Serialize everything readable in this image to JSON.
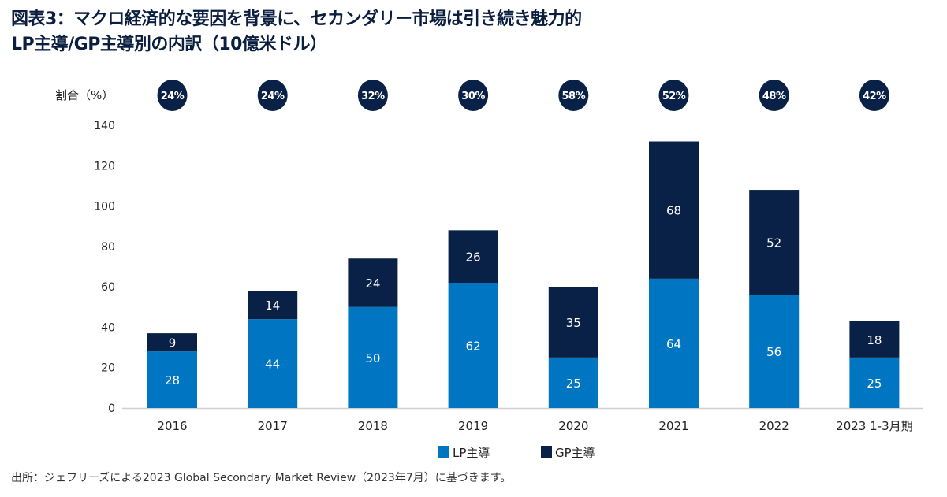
{
  "title_line1": "図表3：マクロ経済的な要因を背景に、セカンダリー市場は引き続き魅力的",
  "title_line2": "LP主導/GP主導別の内訳（10億米ドル）",
  "source": "出所：ジェフリーズによる2023 Global Secondary Market Review（2023年7月）に基づきます。",
  "colors": {
    "lp": "#0075C1",
    "gp": "#0A2147",
    "badge": "#0A2147",
    "axis": "#d0d0d0"
  },
  "chart_data": {
    "type": "bar",
    "stacked": true,
    "title": "LP主導/GP主導別の内訳（10億米ドル）",
    "xlabel": "",
    "ylabel": "",
    "categories": [
      "2016",
      "2017",
      "2018",
      "2019",
      "2020",
      "2021",
      "2022",
      "2023 1-3月期"
    ],
    "series": [
      {
        "name": "LP主導",
        "values": [
          28,
          44,
          50,
          62,
          25,
          64,
          56,
          25
        ]
      },
      {
        "name": "GP主導",
        "values": [
          9,
          14,
          24,
          26,
          35,
          68,
          52,
          18
        ]
      }
    ],
    "share_label": "割合（%）",
    "share_values": [
      "24%",
      "24%",
      "32%",
      "30%",
      "58%",
      "52%",
      "48%",
      "42%"
    ],
    "ylim": [
      0,
      140
    ],
    "yticks": [
      0,
      20,
      40,
      60,
      80,
      100,
      120,
      140
    ],
    "grid": false,
    "legend": "bottom-center"
  }
}
